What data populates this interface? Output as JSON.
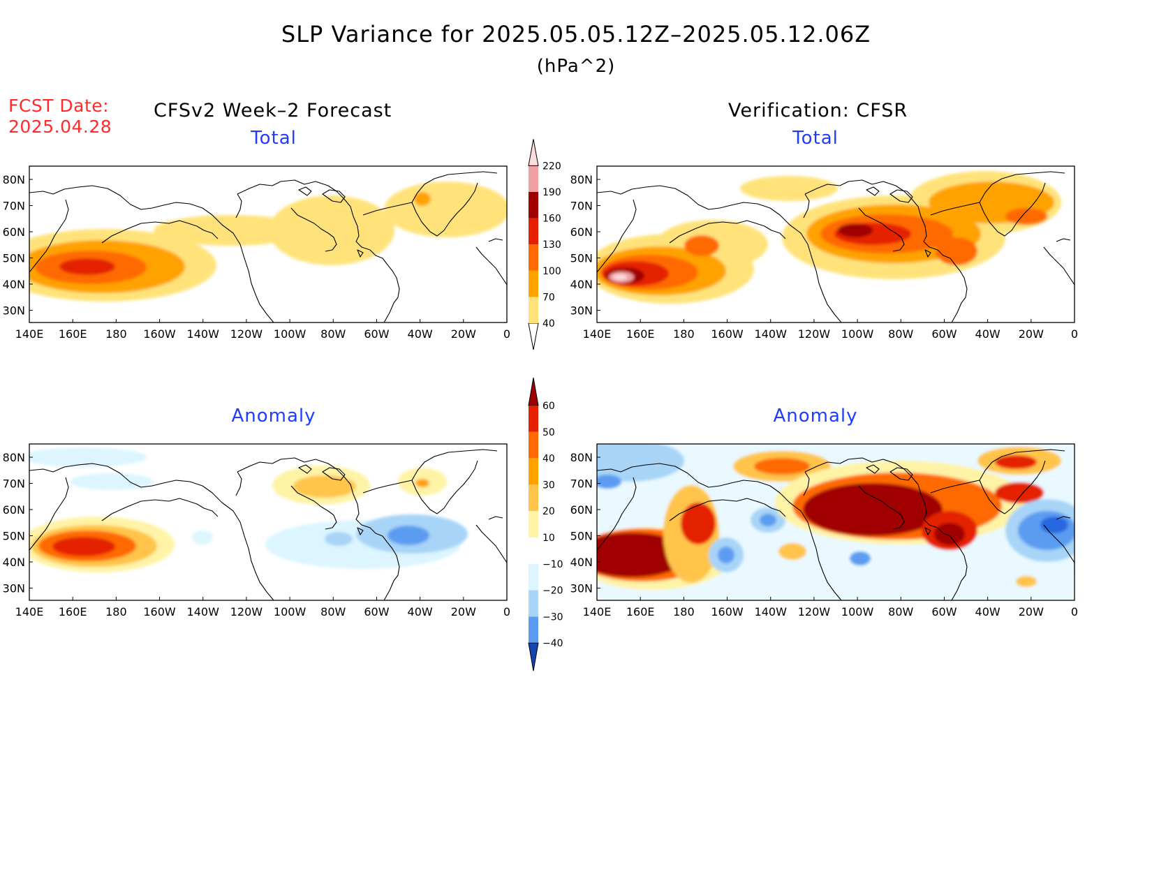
{
  "header": {
    "title": "SLP Variance for 2025.05.05.12Z–2025.05.12.06Z",
    "units": "(hPa^2)",
    "fcst_label": "FCST Date:",
    "fcst_date": "2025.04.28",
    "left_column": "CFSv2 Week–2 Forecast",
    "right_column": "Verification: CFSR"
  },
  "panels": {
    "fc_total": {
      "subtitle": "Total"
    },
    "ver_total": {
      "subtitle": "Total"
    },
    "fc_anom": {
      "subtitle": "Anomaly"
    },
    "ver_anom": {
      "subtitle": "Anomaly"
    }
  },
  "axes": {
    "lon_labels": [
      "140E",
      "160E",
      "180",
      "160W",
      "140W",
      "120W",
      "100W",
      "80W",
      "60W",
      "40W",
      "20W",
      "0"
    ],
    "lat_labels": [
      "80N",
      "70N",
      "60N",
      "50N",
      "40N",
      "30N"
    ]
  },
  "colorbars": {
    "total": {
      "levels": [
        "40",
        "70",
        "100",
        "130",
        "160",
        "190",
        "220"
      ],
      "colors": [
        "#fff0a0",
        "#ffe37a",
        "#ffa200",
        "#ff6a00",
        "#e42000",
        "#a00000",
        "#f0a0a0",
        "#fcdcdc"
      ]
    },
    "anomaly": {
      "levels": [
        "60",
        "50",
        "40",
        "30",
        "20",
        "10",
        "−10",
        "−20",
        "−30",
        "−40"
      ],
      "colors": [
        "#a00000",
        "#e42000",
        "#ff6a00",
        "#ffa200",
        "#ffc44a",
        "#fff3a6",
        "#ffffff",
        "#dcf5ff",
        "#a7d4f7",
        "#5c9cf0",
        "#2868e0",
        "#1446b0"
      ]
    }
  },
  "chart_data": [
    {
      "type": "heatmap",
      "panel": "CFSv2 Week–2 Forecast — Total",
      "units": "hPa^2",
      "x_range": [
        "140E",
        "0"
      ],
      "y_range": [
        "25N",
        "85N"
      ],
      "features": [
        {
          "lon": "175E",
          "lat": "46N",
          "value": 130
        },
        {
          "lon": "85W",
          "lat": "60N",
          "value": 50
        },
        {
          "lon": "38W",
          "lat": "72N",
          "value": 85
        }
      ]
    },
    {
      "type": "heatmap",
      "panel": "Verification: CFSR — Total",
      "units": "hPa^2",
      "x_range": [
        "140E",
        "0"
      ],
      "y_range": [
        "25N",
        "85N"
      ],
      "features": [
        {
          "lon": "150E",
          "lat": "42N",
          "value": 220
        },
        {
          "lon": "170W",
          "lat": "55N",
          "value": 140
        },
        {
          "lon": "100W",
          "lat": "57N",
          "value": 160
        },
        {
          "lon": "60W",
          "lat": "50N",
          "value": 140
        },
        {
          "lon": "25W",
          "lat": "66N",
          "value": 100
        }
      ]
    },
    {
      "type": "heatmap",
      "panel": "CFSv2 Week–2 Forecast — Anomaly",
      "units": "hPa^2",
      "x_range": [
        "140E",
        "0"
      ],
      "y_range": [
        "25N",
        "85N"
      ],
      "features": [
        {
          "lon": "160E",
          "lat": "47N",
          "value": 55
        },
        {
          "lon": "85W",
          "lat": "67N",
          "value": 30
        },
        {
          "lon": "50W",
          "lat": "50N",
          "value": -35
        },
        {
          "lon": "75W",
          "lat": "48N",
          "value": -20
        }
      ]
    },
    {
      "type": "heatmap",
      "panel": "Verification: CFSR — Anomaly",
      "units": "hPa^2",
      "x_range": [
        "140E",
        "0"
      ],
      "y_range": [
        "25N",
        "85N"
      ],
      "features": [
        {
          "lon": "150E",
          "lat": "45N",
          "value": 70
        },
        {
          "lon": "175W",
          "lat": "55N",
          "value": 60
        },
        {
          "lon": "100W",
          "lat": "60N",
          "value": 65
        },
        {
          "lon": "55W",
          "lat": "50N",
          "value": 60
        },
        {
          "lon": "15W",
          "lat": "50N",
          "value": -40
        },
        {
          "lon": "160W",
          "lat": "40N",
          "value": -35
        },
        {
          "lon": "140W",
          "lat": "52N",
          "value": -35
        }
      ]
    }
  ]
}
